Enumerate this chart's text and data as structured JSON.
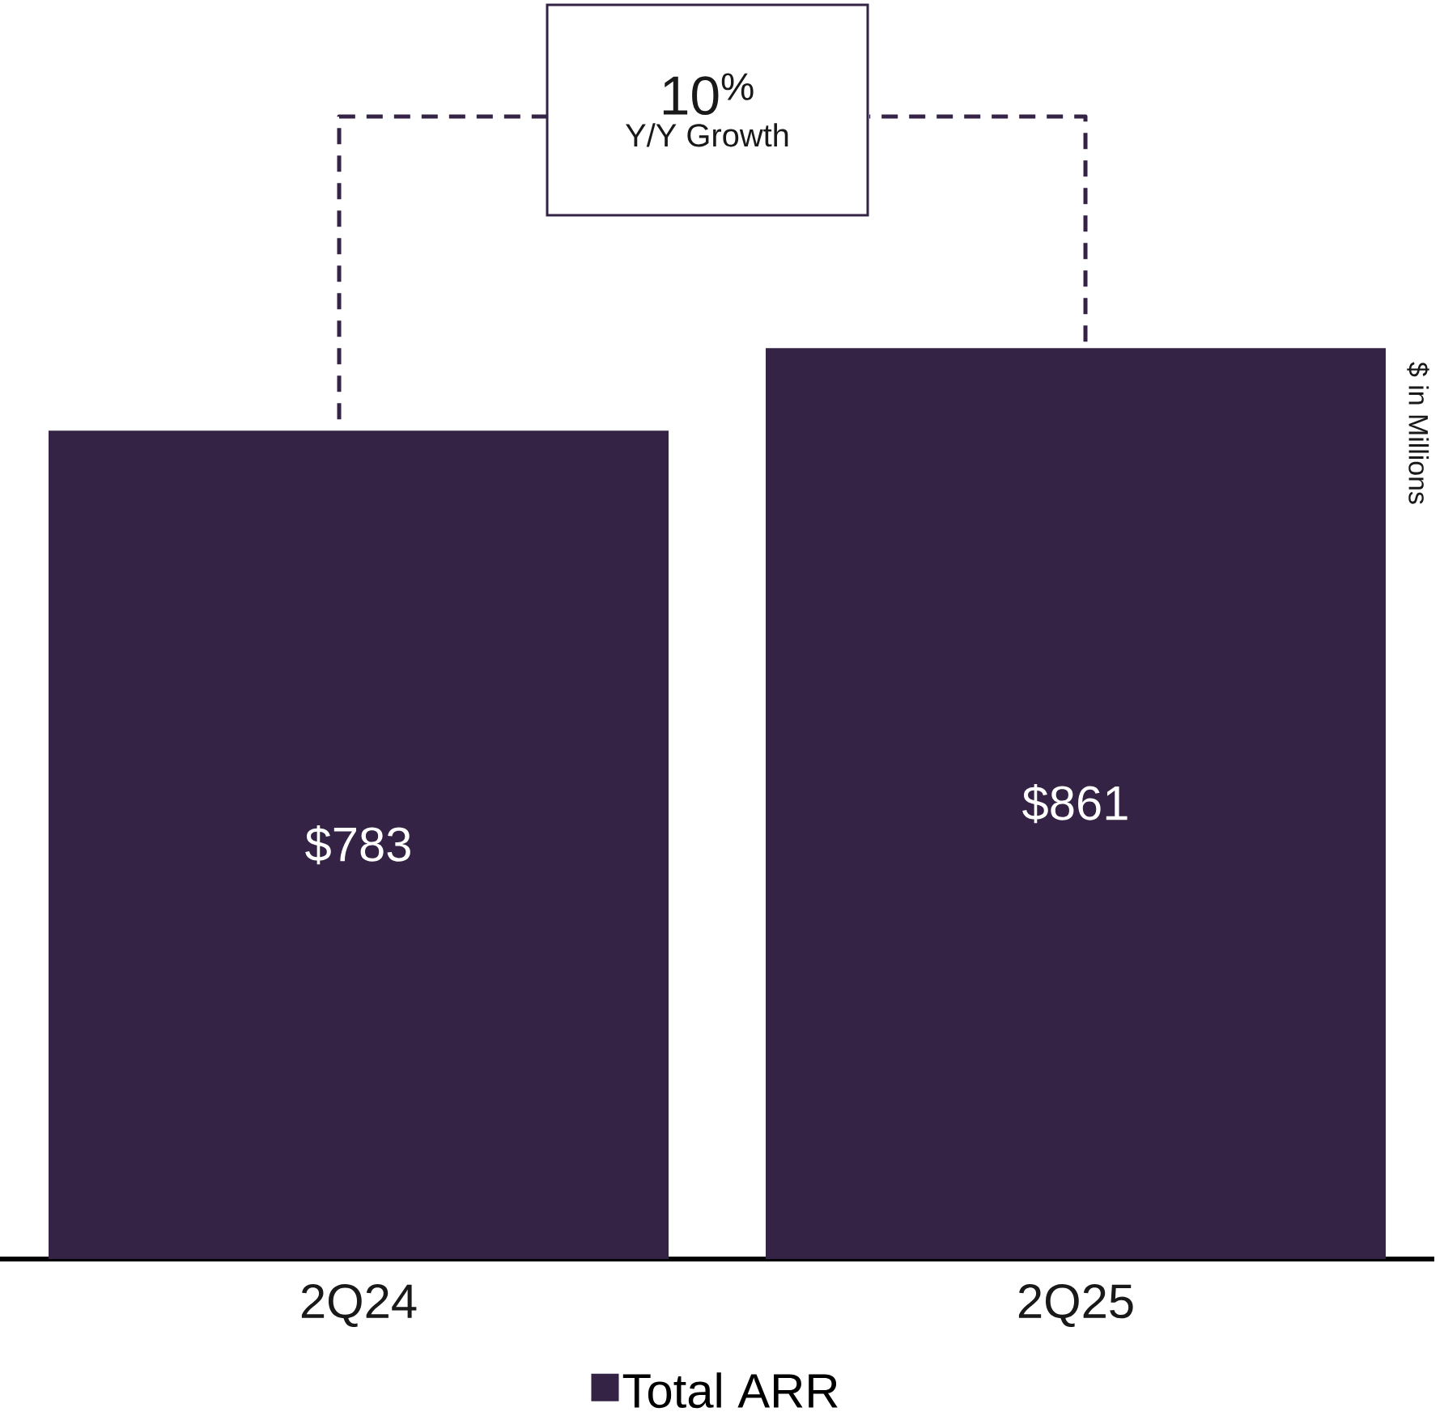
{
  "chart_data": {
    "type": "bar",
    "categories": [
      "2Q24",
      "2Q25"
    ],
    "series": [
      {
        "name": "Total ARR",
        "color": "#342345",
        "values": [
          783,
          861
        ],
        "value_labels": [
          "$783",
          "$861"
        ]
      }
    ],
    "ylim": [
      0,
      1190
    ],
    "legend": "bottom",
    "tick_labels": "x",
    "annotations": [
      "10$^{%}$",
      "Y/Y Growth",
      "$ in Millions"
    ]
  }
}
